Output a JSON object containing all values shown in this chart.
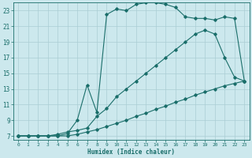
{
  "xlabel": "Humidex (Indice chaleur)",
  "background_color": "#cce8ed",
  "grid_color": "#aacdd4",
  "line_color": "#1a6e6a",
  "xlim": [
    -0.5,
    23.5
  ],
  "ylim": [
    6.5,
    24.0
  ],
  "yticks": [
    7,
    9,
    11,
    13,
    15,
    17,
    19,
    21,
    23
  ],
  "xticks": [
    0,
    1,
    2,
    3,
    4,
    5,
    6,
    7,
    8,
    9,
    10,
    11,
    12,
    13,
    14,
    15,
    16,
    17,
    18,
    19,
    20,
    21,
    22,
    23
  ],
  "line1_x": [
    0,
    1,
    2,
    3,
    4,
    5,
    6,
    7,
    8,
    9,
    10,
    11,
    12,
    13,
    14,
    15,
    16,
    17,
    18,
    19,
    20,
    21,
    22,
    23
  ],
  "line1_y": [
    7,
    7,
    7,
    7,
    7,
    7,
    7.2,
    7.5,
    7.8,
    8.2,
    8.6,
    9.0,
    9.5,
    9.9,
    10.4,
    10.8,
    11.3,
    11.7,
    12.2,
    12.6,
    13.0,
    13.4,
    13.7,
    14.0
  ],
  "line2_x": [
    0,
    1,
    2,
    3,
    4,
    5,
    6,
    7,
    8,
    9,
    10,
    11,
    12,
    13,
    14,
    15,
    16,
    17,
    18,
    19,
    20,
    21,
    22,
    23
  ],
  "line2_y": [
    7,
    7,
    7,
    7,
    7.2,
    7.5,
    7.7,
    8.0,
    9.5,
    10.5,
    12,
    13,
    14,
    15,
    16,
    17,
    18,
    19,
    20,
    20.5,
    20,
    17,
    14.5,
    14
  ],
  "line3_x": [
    0,
    1,
    2,
    3,
    4,
    5,
    6,
    7,
    8,
    9,
    10,
    11,
    12,
    13,
    14,
    15,
    16,
    17,
    18,
    19,
    20,
    21,
    22,
    23
  ],
  "line3_y": [
    7,
    7,
    7,
    7,
    7,
    7.3,
    9,
    13.5,
    10,
    22.5,
    23.2,
    23.0,
    23.8,
    24.0,
    24.0,
    23.8,
    23.4,
    22.2,
    22,
    22,
    21.8,
    22.2,
    22,
    14
  ]
}
